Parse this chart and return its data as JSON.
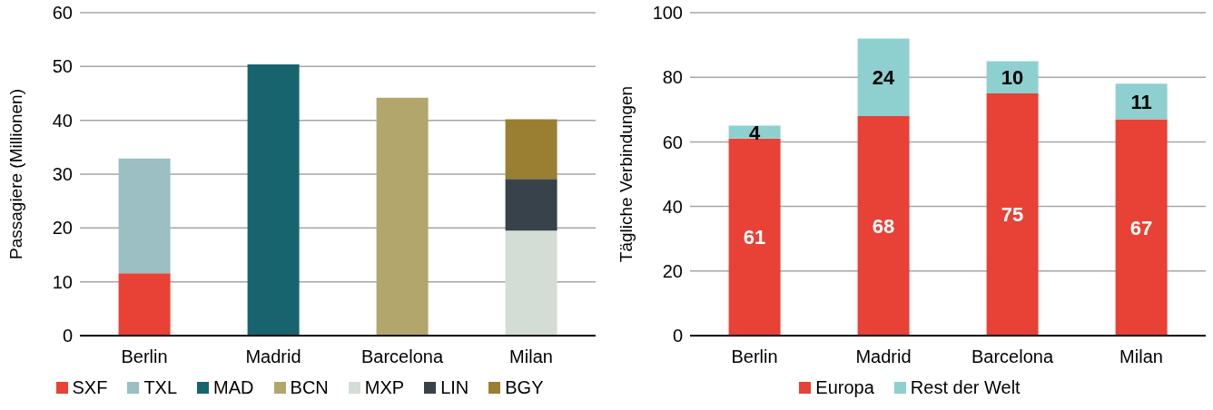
{
  "chart_data": [
    {
      "type": "bar",
      "stacked": true,
      "ylabel": "Passagiere (Millionen)",
      "categories": [
        "Berlin",
        "Madrid",
        "Barcelona",
        "Milan"
      ],
      "ylim": [
        0,
        60
      ],
      "yticks": [
        0,
        10,
        20,
        30,
        40,
        50,
        60
      ],
      "grid": "y",
      "legend": "bottom",
      "series": [
        {
          "name": "SXF",
          "color": "#e84135",
          "values": [
            11.6,
            null,
            null,
            null
          ]
        },
        {
          "name": "TXL",
          "color": "#9bbfc3",
          "values": [
            21.3,
            null,
            null,
            null
          ]
        },
        {
          "name": "MAD",
          "color": "#17646e",
          "values": [
            null,
            50.4,
            null,
            null
          ]
        },
        {
          "name": "BCN",
          "color": "#b3a66c",
          "values": [
            null,
            null,
            44.2,
            null
          ]
        },
        {
          "name": "MXP",
          "color": "#d3ddd6",
          "values": [
            null,
            null,
            null,
            19.5
          ]
        },
        {
          "name": "LIN",
          "color": "#38424a",
          "values": [
            null,
            null,
            null,
            9.6
          ]
        },
        {
          "name": "BGY",
          "color": "#9a7f33",
          "values": [
            null,
            null,
            null,
            11.1
          ]
        }
      ]
    },
    {
      "type": "bar",
      "stacked": true,
      "ylabel": "Tägliche Verbindungen",
      "categories": [
        "Berlin",
        "Madrid",
        "Barcelona",
        "Milan"
      ],
      "ylim": [
        0,
        100
      ],
      "yticks": [
        0,
        20,
        40,
        60,
        80,
        100
      ],
      "grid": "y",
      "legend": "bottom",
      "data_labels": true,
      "series": [
        {
          "name": "Europa",
          "color": "#e84135",
          "values": [
            61,
            68,
            75,
            67
          ]
        },
        {
          "name": "Rest der Welt",
          "color": "#8ed0d0",
          "values": [
            4,
            24,
            10,
            11
          ]
        }
      ]
    }
  ]
}
